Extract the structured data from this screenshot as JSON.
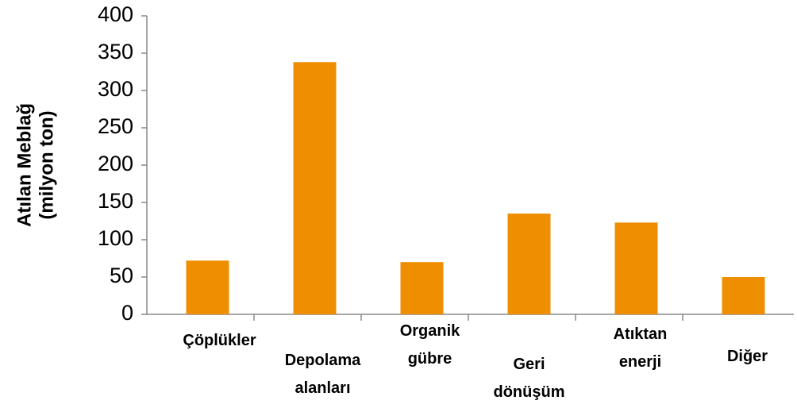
{
  "chart_data": {
    "type": "bar",
    "ylabel": [
      "Atılan Meblağ",
      "(milyon ton)"
    ],
    "categories": [
      "Çöplükler",
      "Depolama alanları",
      "Organik gübre",
      "Geri dönüşüm",
      "Atıktan enerji",
      "Diğer"
    ],
    "values": [
      72,
      338,
      70,
      135,
      123,
      50
    ],
    "color": "#ef8e00",
    "ylim": [
      0,
      400
    ],
    "yticks": [
      0,
      50,
      100,
      150,
      200,
      250,
      300,
      350,
      400
    ],
    "grid": false
  }
}
